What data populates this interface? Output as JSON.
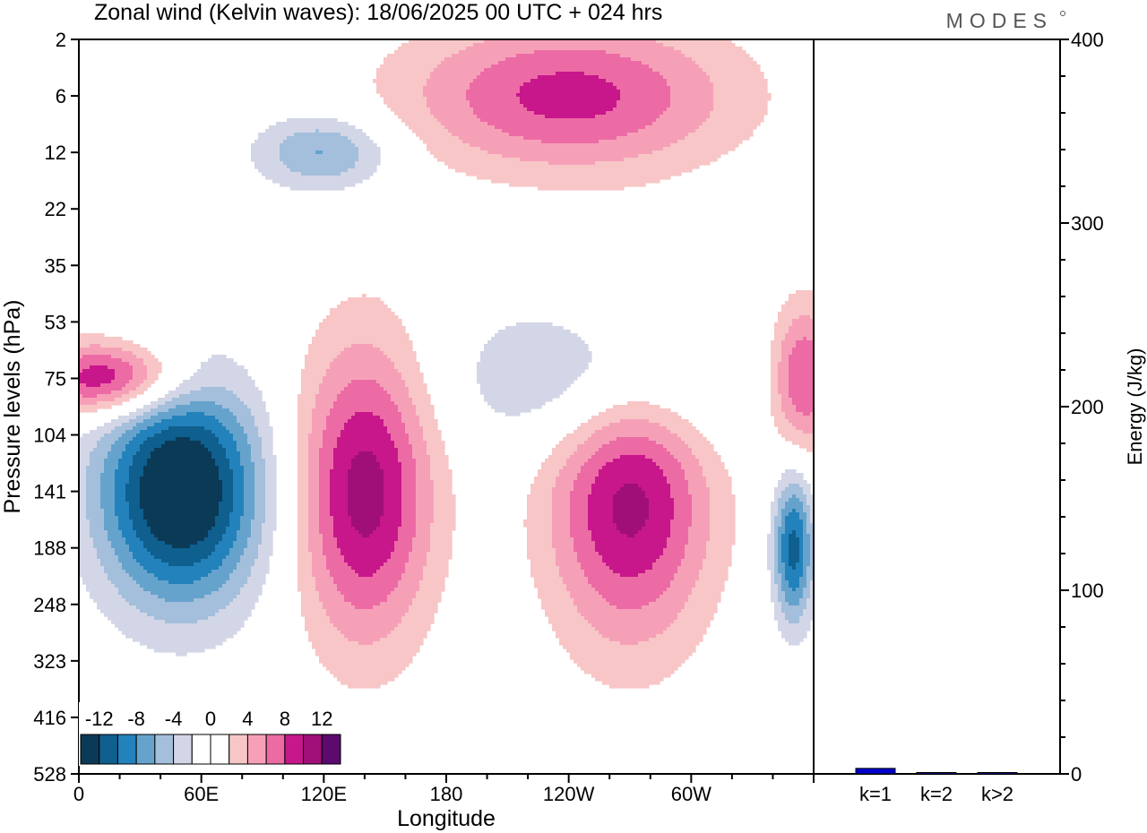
{
  "title": "Zonal wind (Kelvin waves):  18/06/2025  00 UTC  + 024 hrs",
  "brand": "MODES",
  "chart_data": [
    {
      "type": "heatmap",
      "variable": "Zonal wind (Kelvin waves)",
      "xlabel": "Longitude",
      "ylabel": "Pressure levels (hPa)",
      "x_ticks": [
        "0",
        "60E",
        "120E",
        "180",
        "120W",
        "60W"
      ],
      "x_tick_values": [
        0,
        60,
        120,
        180,
        240,
        300
      ],
      "x_range": [
        0,
        360
      ],
      "y_ticks": [
        "2",
        "6",
        "12",
        "22",
        "35",
        "53",
        "75",
        "104",
        "141",
        "188",
        "248",
        "323",
        "416",
        "528"
      ],
      "colorbar": {
        "labels": [
          "-12",
          "-8",
          "-4",
          "0",
          "4",
          "8",
          "12"
        ],
        "label_values": [
          -12,
          -8,
          -4,
          0,
          4,
          8,
          12
        ],
        "levels": [
          -14,
          -12,
          -10,
          -8,
          -6,
          -4,
          -2,
          0,
          2,
          4,
          6,
          8,
          10,
          12,
          14
        ],
        "colors": [
          "#0b3a57",
          "#0f5f8f",
          "#2382bb",
          "#66a3cc",
          "#a3bfdc",
          "#d3d6e6",
          "#ffffff",
          "#ffffff",
          "#f8c6c6",
          "#f6a0b8",
          "#ec6ba5",
          "#c7178b",
          "#a00f78",
          "#5c0a6e"
        ]
      },
      "features": [
        {
          "sign": "negative",
          "lon_range": [
            0,
            110
          ],
          "level_range": [
            "104",
            "323"
          ],
          "peak": -14,
          "peak_lon": 50,
          "peak_level": "141"
        },
        {
          "sign": "positive",
          "lon_range": [
            0,
            70
          ],
          "level_range": [
            "53",
            "104"
          ],
          "peak": 10,
          "peak_lon": 15,
          "peak_level": "75"
        },
        {
          "sign": "positive",
          "lon_range": [
            115,
            190
          ],
          "level_range": [
            "104",
            "416"
          ],
          "peak": 10,
          "peak_lon": 140,
          "peak_level": "141"
        },
        {
          "sign": "positive",
          "lon_range": [
            210,
            320
          ],
          "level_range": [
            "104",
            "416"
          ],
          "peak": 10,
          "peak_lon": 270,
          "peak_level": "141"
        },
        {
          "sign": "positive",
          "lon_range": [
            330,
            360
          ],
          "level_range": [
            "53",
            "141"
          ],
          "peak": 8,
          "peak_lon": 355,
          "peak_level": "75"
        },
        {
          "sign": "negative",
          "lon_range": [
            335,
            360
          ],
          "level_range": [
            "141",
            "323"
          ],
          "peak": -10,
          "peak_lon": 350,
          "peak_level": "188"
        },
        {
          "sign": "negative",
          "lon_range": [
            230,
            360
          ],
          "level_range": [
            "35",
            "104"
          ],
          "peak": -6,
          "peak_lon": 260,
          "peak_level": "75"
        },
        {
          "sign": "positive",
          "lon_range": [
            180,
            360
          ],
          "level_range": [
            "6",
            "22"
          ],
          "peak": 8,
          "peak_lon": 240,
          "peak_level": "6"
        },
        {
          "sign": "negative",
          "lon_range": [
            80,
            170
          ],
          "level_range": [
            "12",
            "22"
          ],
          "peak": -6,
          "peak_lon": 120,
          "peak_level": "12"
        }
      ]
    },
    {
      "type": "bar",
      "ylabel": "Energy (J/kg)",
      "categories": [
        "k=1",
        "k=2",
        "k>2"
      ],
      "values": [
        3,
        0.5,
        0.5
      ],
      "ylim": [
        0,
        400
      ],
      "y_ticks": [
        0,
        100,
        200,
        300,
        400
      ],
      "bar_color": "#0000cc"
    }
  ]
}
